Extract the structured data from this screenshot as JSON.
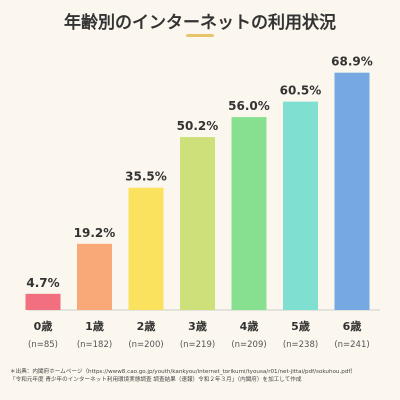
{
  "chart_data": {
    "type": "bar",
    "title": "年齢別のインターネットの利用状況",
    "categories": [
      "0歳",
      "1歳",
      "2歳",
      "3歳",
      "4歳",
      "5歳",
      "6歳"
    ],
    "sample_sizes": [
      "(n=85)",
      "(n=182)",
      "(n=200)",
      "(n=219)",
      "(n=209)",
      "(n=238)",
      "(n=241)"
    ],
    "values": [
      4.7,
      19.2,
      35.5,
      50.2,
      56.0,
      60.5,
      68.9
    ],
    "value_labels": [
      "4.7%",
      "19.2%",
      "35.5%",
      "50.2%",
      "56.0%",
      "60.5%",
      "68.9%"
    ],
    "bar_colors": [
      "#f16f7f",
      "#f9a877",
      "#fbe25e",
      "#cde07a",
      "#86e08f",
      "#7fe0d2",
      "#76a9e3"
    ],
    "ylim": [
      0,
      72
    ],
    "grid": false,
    "xlabel": "",
    "ylabel": ""
  },
  "source": {
    "line1": "＊出典：内閣府ホームページ（https://www8.cao.go.jp/youth/kankyou/internet_torikumi/tyousa/r01/net-jittai/pdf/sokuhou.pdf）",
    "line2": "「令和元年度 青少年のインターネット利用環境実態調査 調査結果（速報）令和２年３月」（内閣府）を加工して作成"
  }
}
